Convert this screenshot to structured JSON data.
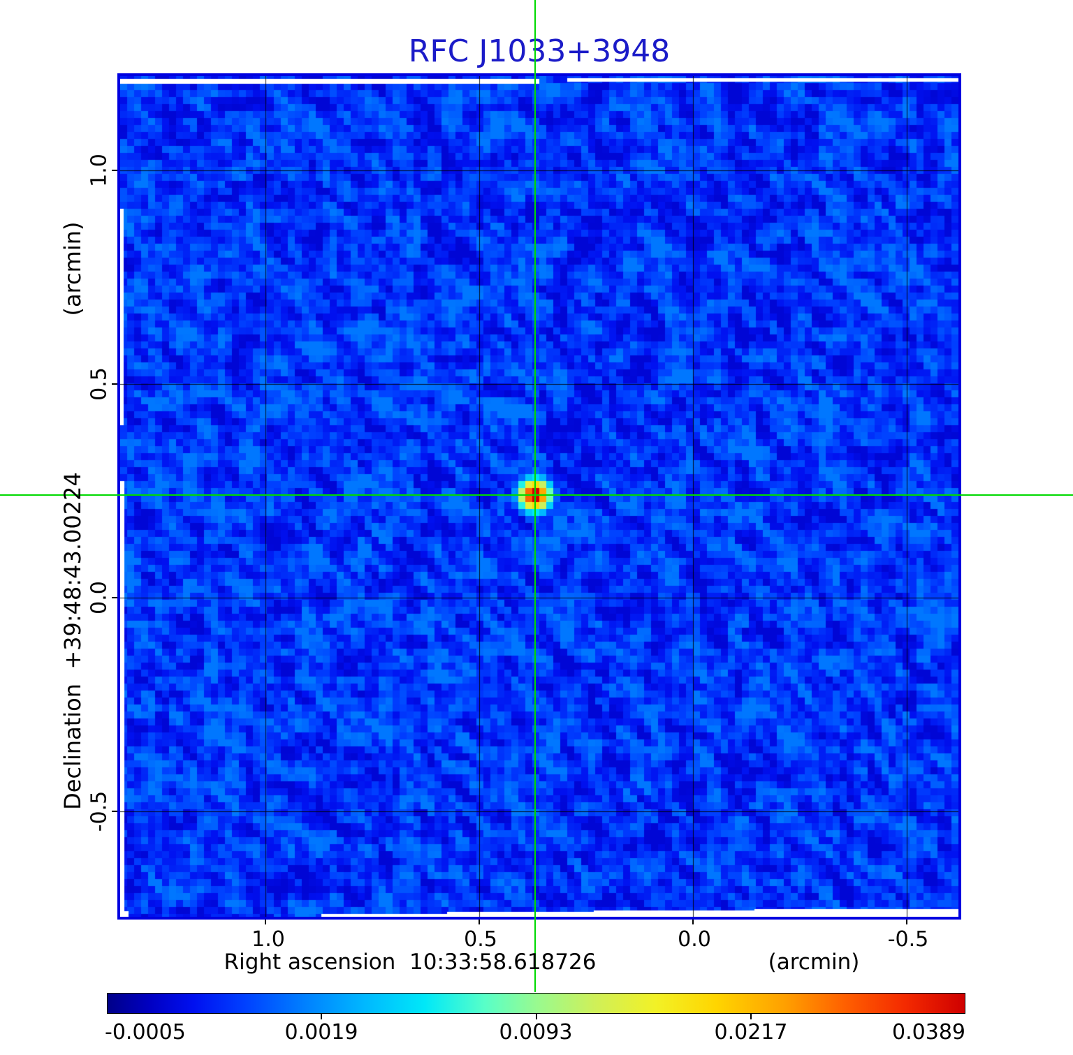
{
  "title": {
    "text": "RFC J1033+3948",
    "color": "#1b1bc8"
  },
  "frame_color": "#0000e0",
  "crosshair": {
    "color": "#00d900"
  },
  "axes": {
    "y_unit_label": "(arcmin)",
    "y_axis_label": "Declination  +39:48:43.00224",
    "y_ticks": [
      "1.0",
      "0.5",
      "0.0",
      "-0.5"
    ],
    "x_axis_label": "Right ascension  10:33:58.618726",
    "x_unit_label": "(arcmin)",
    "x_ticks": [
      "1.0",
      "0.5",
      "0.0",
      "-0.5"
    ]
  },
  "colorbar": {
    "tick_labels": [
      "-0.0005",
      "0.0019",
      "0.0093",
      "0.0217",
      "0.0389"
    ],
    "stops": [
      {
        "p": 0.0,
        "c": "#000089"
      },
      {
        "p": 0.05,
        "c": "#0000c3"
      },
      {
        "p": 0.1,
        "c": "#0010f0"
      },
      {
        "p": 0.16,
        "c": "#0040ff"
      },
      {
        "p": 0.23,
        "c": "#0080ff"
      },
      {
        "p": 0.3,
        "c": "#00b8ff"
      },
      {
        "p": 0.37,
        "c": "#00e8f8"
      },
      {
        "p": 0.44,
        "c": "#58ffc8"
      },
      {
        "p": 0.5,
        "c": "#98fa90"
      },
      {
        "p": 0.57,
        "c": "#d0f058"
      },
      {
        "p": 0.64,
        "c": "#f2f126"
      },
      {
        "p": 0.71,
        "c": "#ffd500"
      },
      {
        "p": 0.79,
        "c": "#ffa000"
      },
      {
        "p": 0.86,
        "c": "#ff6000"
      },
      {
        "p": 0.93,
        "c": "#f42a00"
      },
      {
        "p": 1.0,
        "c": "#cf0000"
      }
    ]
  },
  "chart_data": {
    "type": "heatmap",
    "title": "RFC J1033+3948",
    "xlabel": "Right ascension  10:33:58.618726 (arcmin)",
    "ylabel": "Declination  +39:48:43.00224 (arcmin)",
    "x_ticks": [
      1.0,
      0.5,
      0.0,
      -0.5
    ],
    "y_ticks": [
      1.0,
      0.5,
      0.0,
      -0.5
    ],
    "x_range": [
      1.35,
      -0.63
    ],
    "y_range": [
      -0.75,
      1.23
    ],
    "grid": true,
    "legend_position": "bottom-colorbar",
    "colormap": "jet",
    "colorbar_ticks": [
      -0.0005,
      0.0019,
      0.0093,
      0.0217,
      0.0389
    ],
    "background_level_range": [
      -0.0005,
      0.003
    ],
    "source": {
      "x_arcmin": 0.37,
      "y_arcmin": 0.24,
      "peak": 0.0389,
      "extent_arcmin": 0.1
    }
  }
}
